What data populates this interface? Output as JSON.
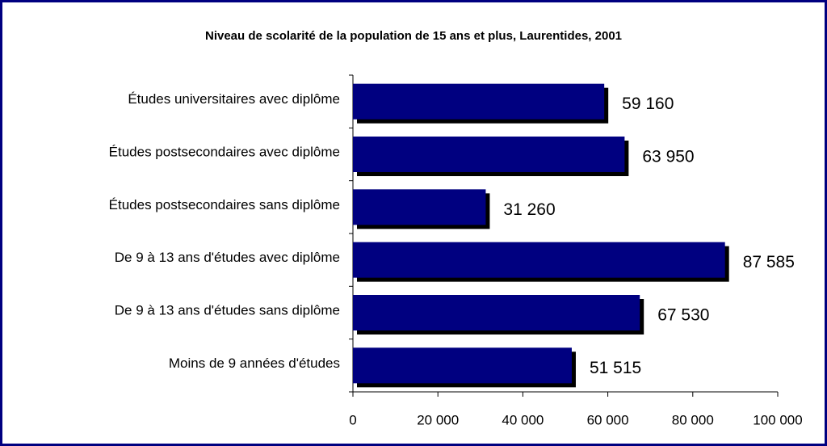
{
  "chart_data": {
    "type": "bar",
    "orientation": "horizontal",
    "title": "Niveau de scolarité de la population de 15 ans et plus, Laurentides, 2001",
    "categories": [
      "Études universitaires avec diplôme",
      "Études postsecondaires avec diplôme",
      "Études postsecondaires sans diplôme",
      "De 9 à 13 ans d'études avec diplôme",
      "De 9 à 13 ans d'études sans diplôme",
      "Moins de 9 années d'études"
    ],
    "values": [
      59160,
      63950,
      31260,
      87585,
      67530,
      51515
    ],
    "value_labels": [
      "59 160",
      "63 950",
      "31 260",
      "87 585",
      "67 530",
      "51 515"
    ],
    "color": "#000080",
    "xlim": [
      0,
      100000
    ],
    "xticks": [
      0,
      {
        "value": 20000,
        "label": "20 000"
      },
      {
        "value": 40000,
        "label": "40 000"
      },
      {
        "value": 60000,
        "label": "60 000"
      },
      {
        "value": 80000,
        "label": "80 000"
      },
      {
        "value": 100000,
        "label": "100 000"
      }
    ]
  }
}
